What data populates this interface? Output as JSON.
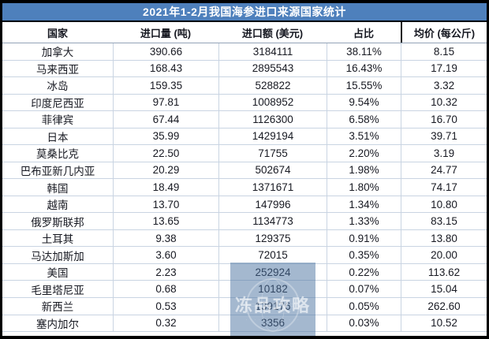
{
  "chart_data": {
    "type": "table",
    "title": "2021年1-2月我国海参进口来源国家统计",
    "columns": [
      "国家",
      "进口量 (吨)",
      "进口额 (美元)",
      "占比",
      "均价 (每公斤)"
    ],
    "rows": [
      {
        "country": "加拿大",
        "volume": "390.66",
        "value": "3184111",
        "share": "38.11%",
        "price": "8.15"
      },
      {
        "country": "马来西亚",
        "volume": "168.43",
        "value": "2895543",
        "share": "16.43%",
        "price": "17.19"
      },
      {
        "country": "冰岛",
        "volume": "159.35",
        "value": "528822",
        "share": "15.55%",
        "price": "3.32"
      },
      {
        "country": "印度尼西亚",
        "volume": "97.81",
        "value": "1008952",
        "share": "9.54%",
        "price": "10.32"
      },
      {
        "country": "菲律宾",
        "volume": "67.44",
        "value": "1126300",
        "share": "6.58%",
        "price": "16.70"
      },
      {
        "country": "日本",
        "volume": "35.99",
        "value": "1429194",
        "share": "3.51%",
        "price": "39.71"
      },
      {
        "country": "莫桑比克",
        "volume": "22.50",
        "value": "71755",
        "share": "2.20%",
        "price": "3.19"
      },
      {
        "country": "巴布亚新几内亚",
        "volume": "20.29",
        "value": "502674",
        "share": "1.98%",
        "price": "24.77"
      },
      {
        "country": "韩国",
        "volume": "18.49",
        "value": "1371671",
        "share": "1.80%",
        "price": "74.17"
      },
      {
        "country": "越南",
        "volume": "13.70",
        "value": "147996",
        "share": "1.34%",
        "price": "10.80"
      },
      {
        "country": "俄罗斯联邦",
        "volume": "13.65",
        "value": "1134773",
        "share": "1.33%",
        "price": "83.15"
      },
      {
        "country": "土耳其",
        "volume": "9.38",
        "value": "129375",
        "share": "0.91%",
        "price": "13.80"
      },
      {
        "country": "马达加斯加",
        "volume": "3.60",
        "value": "72015",
        "share": "0.35%",
        "price": "20.00"
      },
      {
        "country": "美国",
        "volume": "2.23",
        "value": "252924",
        "share": "0.22%",
        "price": "113.62"
      },
      {
        "country": "毛里塔尼亚",
        "volume": "0.68",
        "value": "10182",
        "share": "0.07%",
        "price": "15.04"
      },
      {
        "country": "新西兰",
        "volume": "0.53",
        "value": "139176",
        "share": "0.05%",
        "price": "262.60"
      },
      {
        "country": "塞内加尔",
        "volume": "0.32",
        "value": "3356",
        "share": "0.03%",
        "price": "10.52"
      }
    ]
  },
  "watermark": {
    "text": "冻品攻略",
    "caption": "· · · · · · · · · · · · ·"
  },
  "colors": {
    "title_bar": "#4E80BC",
    "outer_border": "#000000",
    "grid_line": "#C9D4E2",
    "watermark_blue": "#4A729F"
  }
}
